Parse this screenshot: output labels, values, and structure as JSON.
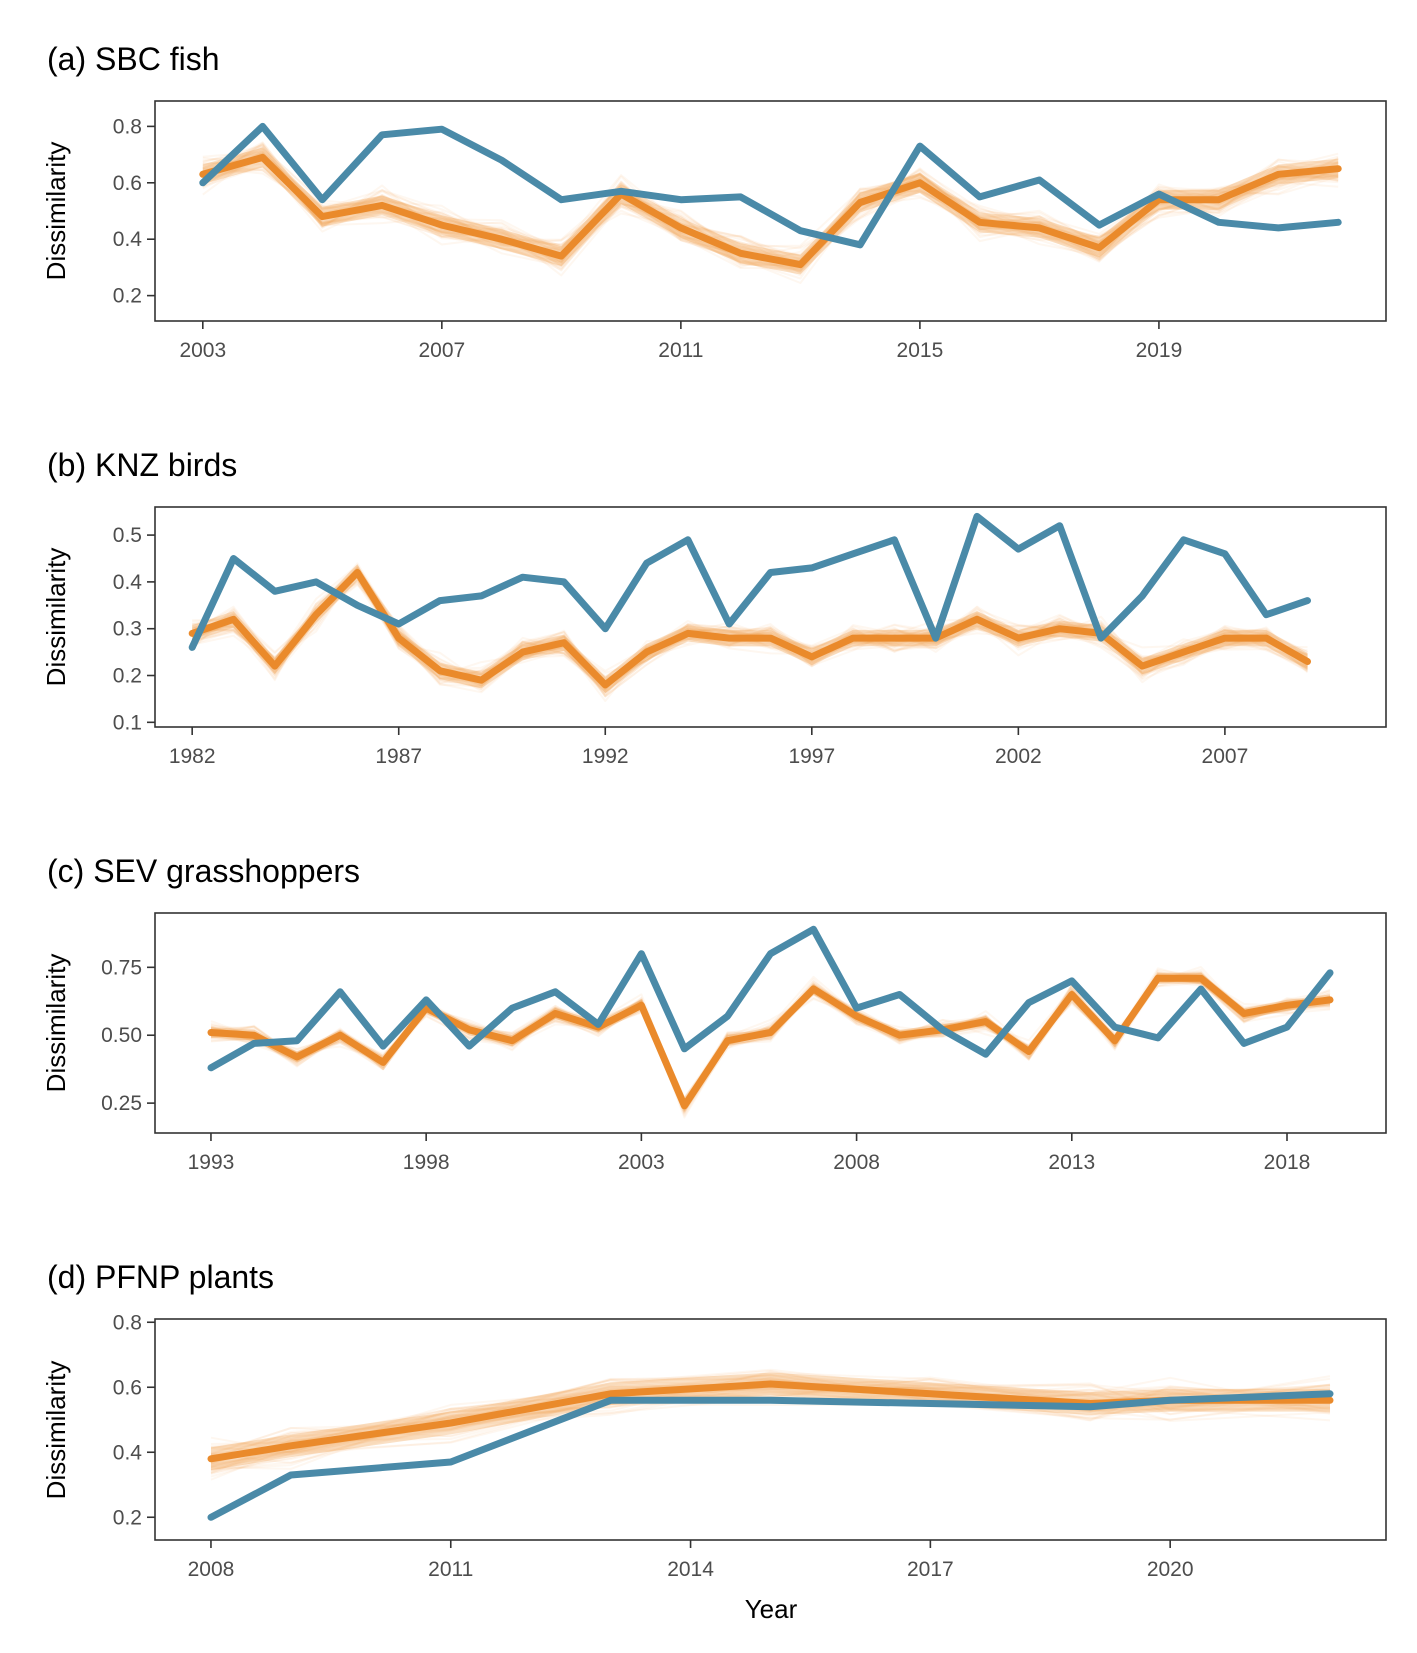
{
  "colors": {
    "observed": "#4a8aa8",
    "null_mean": "#ea8a2b",
    "null_replicates": "#f2a65a",
    "panel_border": "#333333",
    "tick_label": "#4d4d4d"
  },
  "xlabel": "Year",
  "chart_data": [
    {
      "type": "line",
      "title": "(a) SBC fish",
      "ylabel": "Dissimilarity",
      "xlim": [
        2002.2,
        2022.8
      ],
      "ylim": [
        0.11,
        0.89
      ],
      "x_ticks": [
        2003,
        2007,
        2011,
        2015,
        2019
      ],
      "y_ticks": [
        0.2,
        0.4,
        0.6,
        0.8
      ],
      "x_tick_labels": [
        "2003",
        "2007",
        "2011",
        "2015",
        "2019"
      ],
      "y_tick_labels": [
        "0.2",
        "0.4",
        "0.6",
        "0.8"
      ],
      "x": [
        2003,
        2004,
        2005,
        2006,
        2007,
        2008,
        2009,
        2010,
        2011,
        2012,
        2013,
        2014,
        2015,
        2016,
        2017,
        2018,
        2019,
        2020,
        2021,
        2022
      ],
      "band_halfwidth": 0.07,
      "series": [
        {
          "role": "observed",
          "values": [
            0.6,
            0.8,
            0.54,
            0.77,
            0.79,
            0.68,
            0.54,
            0.57,
            0.54,
            0.55,
            0.43,
            0.38,
            0.73,
            0.55,
            0.61,
            0.45,
            0.56,
            0.46,
            0.44,
            0.46
          ]
        },
        {
          "role": "null_mean",
          "values": [
            0.63,
            0.69,
            0.48,
            0.52,
            0.45,
            0.4,
            0.34,
            0.56,
            0.44,
            0.35,
            0.31,
            0.53,
            0.6,
            0.46,
            0.44,
            0.37,
            0.54,
            0.54,
            0.63,
            0.65
          ]
        }
      ]
    },
    {
      "type": "line",
      "title": "(b) KNZ birds",
      "ylabel": "Dissimilarity",
      "xlim": [
        1981.1,
        2010.9
      ],
      "ylim": [
        0.09,
        0.56
      ],
      "x_ticks": [
        1982,
        1987,
        1992,
        1997,
        2002,
        2007
      ],
      "y_ticks": [
        0.1,
        0.2,
        0.3,
        0.4,
        0.5
      ],
      "x_tick_labels": [
        "1982",
        "1987",
        "1992",
        "1997",
        "2002",
        "2007"
      ],
      "y_tick_labels": [
        "0.1",
        "0.2",
        "0.3",
        "0.4",
        "0.5"
      ],
      "x": [
        1982,
        1983,
        1984,
        1985,
        1986,
        1987,
        1988,
        1989,
        1990,
        1991,
        1992,
        1993,
        1994,
        1995,
        1996,
        1997,
        1998,
        1999,
        2000,
        2001,
        2002,
        2003,
        2004,
        2005,
        2006,
        2007,
        2008,
        2009
      ],
      "band_halfwidth": 0.035,
      "series": [
        {
          "role": "observed",
          "values": [
            0.26,
            0.45,
            0.38,
            0.4,
            0.35,
            0.31,
            0.36,
            0.37,
            0.41,
            0.4,
            0.3,
            0.44,
            0.49,
            0.31,
            0.42,
            0.43,
            0.46,
            0.49,
            0.28,
            0.54,
            0.47,
            0.52,
            0.28,
            0.37,
            0.49,
            0.46,
            0.33,
            0.36
          ]
        },
        {
          "role": "null_mean",
          "values": [
            0.29,
            0.32,
            0.22,
            0.33,
            0.42,
            0.28,
            0.21,
            0.19,
            0.25,
            0.27,
            0.18,
            0.25,
            0.29,
            0.28,
            0.28,
            0.24,
            0.28,
            0.28,
            0.28,
            0.32,
            0.28,
            0.3,
            0.29,
            0.22,
            0.25,
            0.28,
            0.28,
            0.23
          ]
        }
      ]
    },
    {
      "type": "line",
      "title": "(c) SEV grasshoppers",
      "ylabel": "Dissimilarity",
      "xlim": [
        1991.7,
        2020.3
      ],
      "ylim": [
        0.14,
        0.95
      ],
      "x_ticks": [
        1993,
        1998,
        2003,
        2008,
        2013,
        2018
      ],
      "y_ticks": [
        0.25,
        0.5,
        0.75
      ],
      "x_tick_labels": [
        "1993",
        "1998",
        "2003",
        "2008",
        "2013",
        "2018"
      ],
      "y_tick_labels": [
        "0.25",
        "0.50",
        "0.75"
      ],
      "x": [
        1993,
        1994,
        1995,
        1996,
        1997,
        1998,
        1999,
        2000,
        2001,
        2002,
        2003,
        2004,
        2005,
        2006,
        2007,
        2008,
        2009,
        2010,
        2011,
        2012,
        2013,
        2014,
        2015,
        2016,
        2017,
        2018,
        2019
      ],
      "band_halfwidth": 0.04,
      "series": [
        {
          "role": "observed",
          "values": [
            0.38,
            0.47,
            0.48,
            0.66,
            0.46,
            0.63,
            0.46,
            0.6,
            0.66,
            0.54,
            0.8,
            0.45,
            0.57,
            0.8,
            0.89,
            0.6,
            0.65,
            0.52,
            0.43,
            0.62,
            0.7,
            0.53,
            0.49,
            0.67,
            0.47,
            0.53,
            0.73
          ]
        },
        {
          "role": "null_mean",
          "values": [
            0.51,
            0.5,
            0.42,
            0.5,
            0.4,
            0.6,
            0.52,
            0.48,
            0.58,
            0.53,
            0.61,
            0.24,
            0.48,
            0.51,
            0.67,
            0.57,
            0.5,
            0.52,
            0.55,
            0.44,
            0.65,
            0.48,
            0.71,
            0.71,
            0.58,
            0.61,
            0.63
          ]
        }
      ]
    },
    {
      "type": "line",
      "title": "(d) PFNP plants",
      "ylabel": "Dissimilarity",
      "xlim": [
        2007.3,
        2022.7
      ],
      "ylim": [
        0.13,
        0.81
      ],
      "x_ticks": [
        2008,
        2011,
        2014,
        2017,
        2020
      ],
      "y_ticks": [
        0.2,
        0.4,
        0.6,
        0.8
      ],
      "x_tick_labels": [
        "2008",
        "2011",
        "2014",
        "2017",
        "2020"
      ],
      "y_tick_labels": [
        "0.2",
        "0.4",
        "0.6",
        "0.8"
      ],
      "x": [
        2008,
        2009,
        2011,
        2013,
        2015,
        2017,
        2019,
        2020,
        2022
      ],
      "band_halfwidth": 0.07,
      "series": [
        {
          "role": "observed",
          "values": [
            0.2,
            0.33,
            0.37,
            0.56,
            0.56,
            0.55,
            0.54,
            0.56,
            0.58
          ]
        },
        {
          "role": "null_mean",
          "values": [
            0.38,
            0.42,
            0.49,
            0.58,
            0.61,
            0.58,
            0.55,
            0.56,
            0.56
          ]
        }
      ]
    }
  ]
}
